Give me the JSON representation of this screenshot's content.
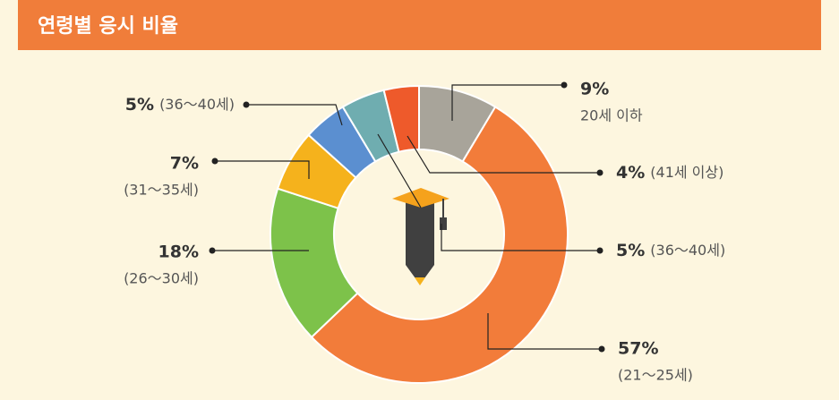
{
  "chart_data": {
    "type": "donut",
    "title": "연령별 응시 비율",
    "categories": [
      "20세 이하",
      "(21〜25세)",
      "(26〜30세)",
      "(31〜35세)",
      "(36〜40세)",
      "(36〜40세)",
      "(41세 이상)"
    ],
    "values": [
      9,
      57,
      18,
      7,
      5,
      5,
      4
    ],
    "value_labels": [
      "9%",
      "57%",
      "18%",
      "7%",
      "5%",
      "5%",
      "4%"
    ],
    "colors": [
      "#a8a49a",
      "#f27c3a",
      "#7dc24a",
      "#f5b21c",
      "#5b8fd0",
      "#6fadb0",
      "#ee5a2b"
    ]
  }
}
